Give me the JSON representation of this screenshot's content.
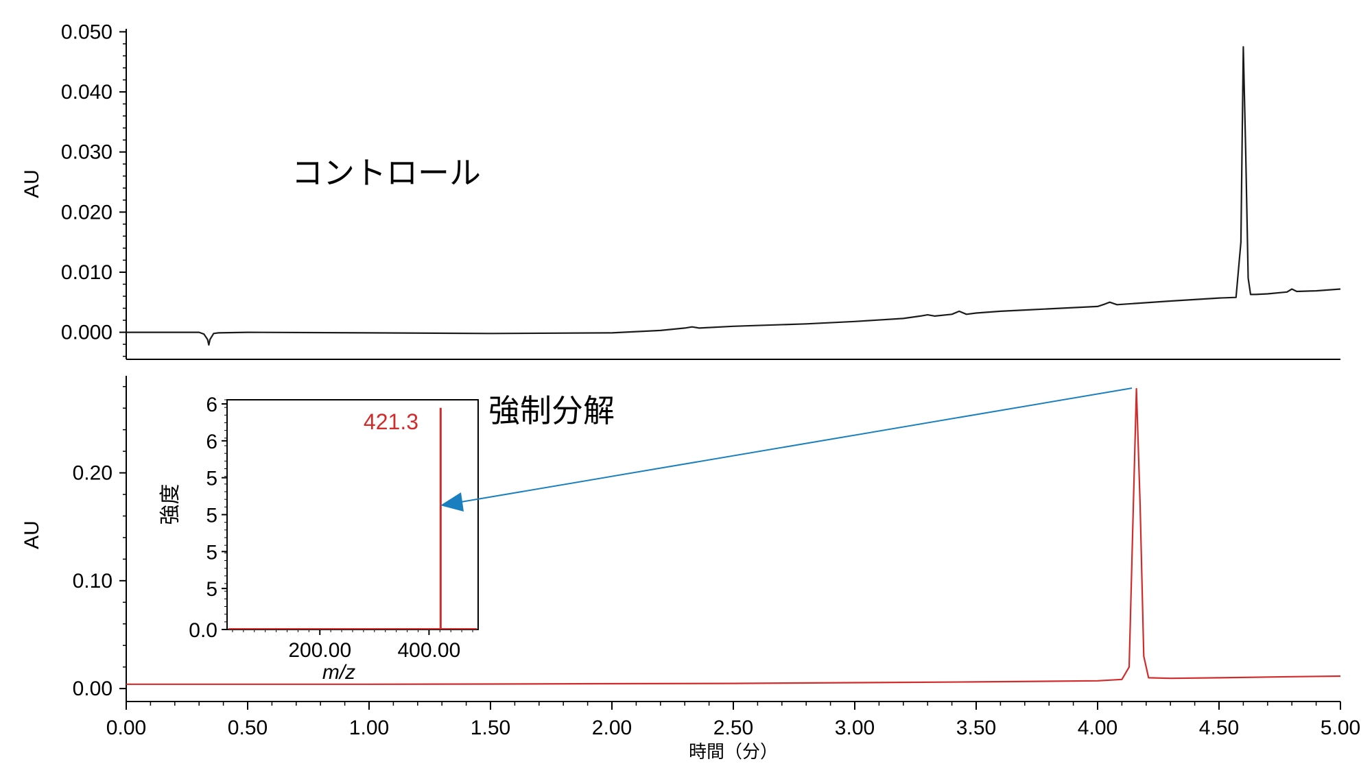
{
  "chart_data": {
    "type": "line",
    "xlabel": "時間（分）",
    "xlim": [
      0,
      5
    ],
    "xticks": [
      {
        "value": 0.0,
        "label": "0.00"
      },
      {
        "value": 0.5,
        "label": "0.50"
      },
      {
        "value": 1.0,
        "label": "1.00"
      },
      {
        "value": 1.5,
        "label": "1.50"
      },
      {
        "value": 2.0,
        "label": "2.00"
      },
      {
        "value": 2.5,
        "label": "2.50"
      },
      {
        "value": 3.0,
        "label": "3.00"
      },
      {
        "value": 3.5,
        "label": "3.50"
      },
      {
        "value": 4.0,
        "label": "4.00"
      },
      {
        "value": 4.5,
        "label": "4.50"
      },
      {
        "value": 5.0,
        "label": "5.00"
      }
    ],
    "panels": [
      {
        "label": "コントロール",
        "ylabel": "AU",
        "ylim": [
          -0.0045,
          0.0505
        ],
        "yticks": [
          {
            "value": 0.0,
            "label": "0.000"
          },
          {
            "value": 0.01,
            "label": "0.010"
          },
          {
            "value": 0.02,
            "label": "0.020"
          },
          {
            "value": 0.03,
            "label": "0.030"
          },
          {
            "value": 0.04,
            "label": "0.040"
          },
          {
            "value": 0.05,
            "label": "0.050"
          }
        ],
        "color": "#1a1a1a",
        "x": [
          0.0,
          0.3,
          0.32,
          0.335,
          0.34,
          0.345,
          0.36,
          0.38,
          0.5,
          1.0,
          1.5,
          2.0,
          2.2,
          2.3,
          2.33,
          2.36,
          2.5,
          2.8,
          3.0,
          3.2,
          3.27,
          3.3,
          3.33,
          3.4,
          3.43,
          3.46,
          3.5,
          3.6,
          3.7,
          4.0,
          4.03,
          4.05,
          4.08,
          4.3,
          4.5,
          4.57,
          4.59,
          4.6,
          4.61,
          4.62,
          4.63,
          4.65,
          4.7,
          4.78,
          4.8,
          4.82,
          4.9,
          5.0
        ],
        "values": [
          0.0,
          0.0,
          -0.0003,
          -0.0012,
          -0.0021,
          -0.0012,
          -0.0002,
          -0.0001,
          0.0,
          -0.0001,
          -0.0002,
          -0.0001,
          0.0003,
          0.0007,
          0.0009,
          0.0007,
          0.001,
          0.0014,
          0.0018,
          0.0023,
          0.0027,
          0.0029,
          0.0027,
          0.003,
          0.0035,
          0.003,
          0.0032,
          0.0035,
          0.0037,
          0.0043,
          0.0047,
          0.005,
          0.0046,
          0.0052,
          0.0057,
          0.0058,
          0.015,
          0.0475,
          0.03,
          0.009,
          0.0063,
          0.0063,
          0.0064,
          0.0067,
          0.0072,
          0.0068,
          0.0069,
          0.0072
        ]
      },
      {
        "label": "強制分解",
        "ylabel": "AU",
        "ylim": [
          -0.012,
          0.29
        ],
        "yticks": [
          {
            "value": 0.0,
            "label": "0.00"
          },
          {
            "value": 0.1,
            "label": "0.10"
          },
          {
            "value": 0.2,
            "label": "0.20"
          }
        ],
        "color": "#d12b2b",
        "x": [
          0.0,
          0.5,
          1.0,
          1.5,
          2.0,
          2.5,
          3.0,
          3.5,
          4.0,
          4.1,
          4.13,
          4.145,
          4.16,
          4.175,
          4.19,
          4.21,
          4.3,
          4.5,
          4.8,
          5.0
        ],
        "values": [
          0.004,
          0.004,
          0.004,
          0.0042,
          0.0045,
          0.0048,
          0.0055,
          0.0062,
          0.0072,
          0.0085,
          0.02,
          0.15,
          0.278,
          0.17,
          0.03,
          0.01,
          0.0095,
          0.01,
          0.011,
          0.0115
        ]
      }
    ],
    "inset": {
      "type": "bar",
      "xlabel": "m/z",
      "ylabel": "強度",
      "xlim": [
        30,
        490
      ],
      "xticks": [
        {
          "value": 200,
          "label": "200.00"
        },
        {
          "value": 400,
          "label": "400.00"
        }
      ],
      "yticks": [
        "0.0",
        "5",
        "5",
        "5",
        "5",
        "6",
        "6"
      ],
      "peak": {
        "mz": 421.3,
        "label": "421.3",
        "rel_height": 0.965
      },
      "color": "#d12b2b"
    },
    "annotation_arrow": {
      "from": "強制分解 peak at 4.16 min",
      "to": "inset mass spectrum",
      "color": "#1a7fbf"
    }
  }
}
